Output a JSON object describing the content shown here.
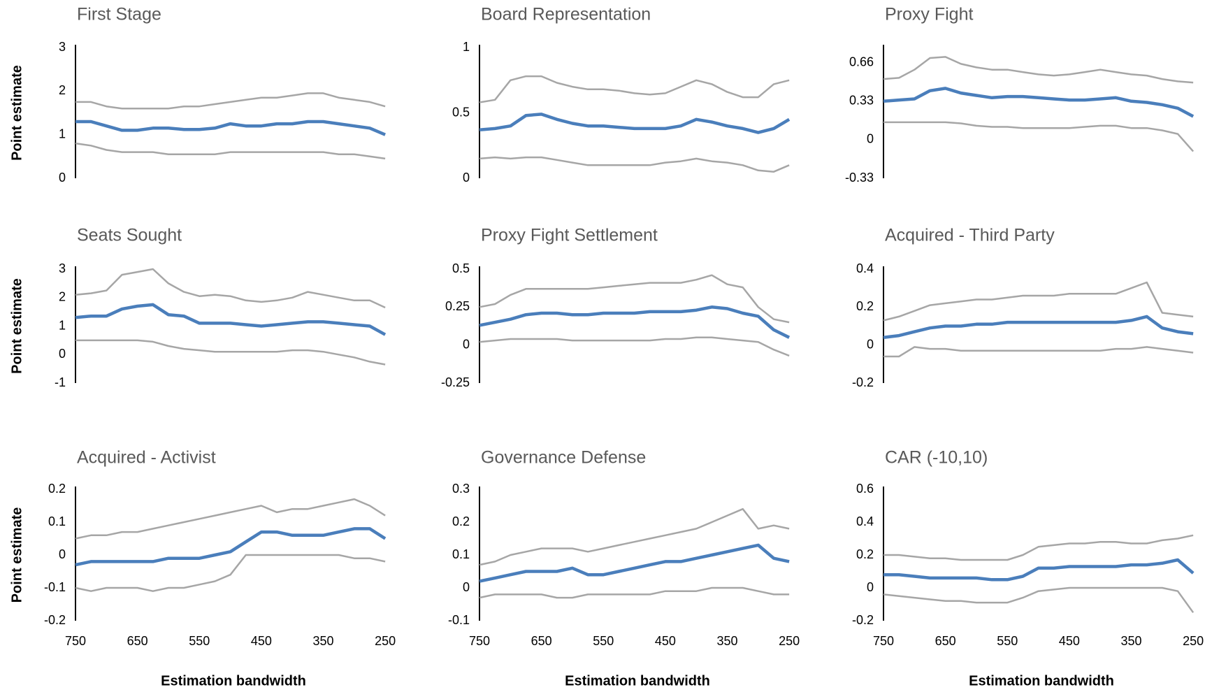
{
  "chart_data": [
    {
      "type": "line",
      "title": "First Stage",
      "y_label": "Point estimate",
      "x": [
        750,
        725,
        700,
        675,
        650,
        625,
        600,
        575,
        550,
        525,
        500,
        475,
        450,
        425,
        400,
        375,
        350,
        325,
        300,
        275,
        250
      ],
      "xlim": [
        750,
        240
      ],
      "ylim": [
        0,
        3
      ],
      "yticks": [
        0,
        1,
        2,
        3
      ],
      "series": [
        {
          "color": "#a6a6a6",
          "values": [
            1.75,
            1.75,
            1.65,
            1.6,
            1.6,
            1.6,
            1.6,
            1.65,
            1.65,
            1.7,
            1.75,
            1.8,
            1.85,
            1.85,
            1.9,
            1.95,
            1.95,
            1.85,
            1.8,
            1.75,
            1.65
          ]
        },
        {
          "color": "#a6a6a6",
          "values": [
            0.8,
            0.75,
            0.65,
            0.6,
            0.6,
            0.6,
            0.55,
            0.55,
            0.55,
            0.55,
            0.6,
            0.6,
            0.6,
            0.6,
            0.6,
            0.6,
            0.6,
            0.55,
            0.55,
            0.5,
            0.45
          ]
        },
        {
          "color": "#4a7ebb",
          "values": [
            1.3,
            1.3,
            1.2,
            1.1,
            1.1,
            1.15,
            1.15,
            1.12,
            1.12,
            1.15,
            1.25,
            1.2,
            1.2,
            1.25,
            1.25,
            1.3,
            1.3,
            1.25,
            1.2,
            1.15,
            1.0
          ]
        }
      ]
    },
    {
      "type": "line",
      "title": "Board Representation",
      "x": [
        750,
        725,
        700,
        675,
        650,
        625,
        600,
        575,
        550,
        525,
        500,
        475,
        450,
        425,
        400,
        375,
        350,
        325,
        300,
        275,
        250
      ],
      "xlim": [
        750,
        240
      ],
      "ylim": [
        0,
        1
      ],
      "yticks": [
        0,
        0.5,
        1
      ],
      "series": [
        {
          "color": "#a6a6a6",
          "values": [
            0.58,
            0.6,
            0.75,
            0.78,
            0.78,
            0.73,
            0.7,
            0.68,
            0.68,
            0.67,
            0.65,
            0.64,
            0.65,
            0.7,
            0.75,
            0.72,
            0.66,
            0.62,
            0.62,
            0.72,
            0.75
          ]
        },
        {
          "color": "#a6a6a6",
          "values": [
            0.15,
            0.16,
            0.15,
            0.16,
            0.16,
            0.14,
            0.12,
            0.1,
            0.1,
            0.1,
            0.1,
            0.1,
            0.12,
            0.13,
            0.15,
            0.13,
            0.12,
            0.1,
            0.06,
            0.05,
            0.1
          ]
        },
        {
          "color": "#4a7ebb",
          "values": [
            0.37,
            0.38,
            0.4,
            0.48,
            0.49,
            0.45,
            0.42,
            0.4,
            0.4,
            0.39,
            0.38,
            0.38,
            0.38,
            0.4,
            0.45,
            0.43,
            0.4,
            0.38,
            0.35,
            0.38,
            0.45
          ]
        }
      ]
    },
    {
      "type": "line",
      "title": "Proxy Fight",
      "x": [
        750,
        725,
        700,
        675,
        650,
        625,
        600,
        575,
        550,
        525,
        500,
        475,
        450,
        425,
        400,
        375,
        350,
        325,
        300,
        275,
        250
      ],
      "xlim": [
        750,
        240
      ],
      "ylim": [
        -0.33,
        0.79
      ],
      "yticks": [
        -0.33,
        0,
        0.33,
        0.66
      ],
      "series": [
        {
          "color": "#a6a6a6",
          "values": [
            0.52,
            0.53,
            0.6,
            0.7,
            0.71,
            0.65,
            0.62,
            0.6,
            0.6,
            0.58,
            0.56,
            0.55,
            0.56,
            0.58,
            0.6,
            0.58,
            0.56,
            0.55,
            0.52,
            0.5,
            0.49
          ]
        },
        {
          "color": "#a6a6a6",
          "values": [
            0.15,
            0.15,
            0.15,
            0.15,
            0.15,
            0.14,
            0.12,
            0.11,
            0.11,
            0.1,
            0.1,
            0.1,
            0.1,
            0.11,
            0.12,
            0.12,
            0.1,
            0.1,
            0.08,
            0.05,
            -0.1
          ]
        },
        {
          "color": "#4a7ebb",
          "values": [
            0.33,
            0.34,
            0.35,
            0.42,
            0.44,
            0.4,
            0.38,
            0.36,
            0.37,
            0.37,
            0.36,
            0.35,
            0.34,
            0.34,
            0.35,
            0.36,
            0.33,
            0.32,
            0.3,
            0.27,
            0.2
          ]
        }
      ]
    },
    {
      "type": "line",
      "title": "Seats Sought",
      "y_label": "Point estimate",
      "x": [
        750,
        725,
        700,
        675,
        650,
        625,
        600,
        575,
        550,
        525,
        500,
        475,
        450,
        425,
        400,
        375,
        350,
        325,
        300,
        275,
        250
      ],
      "xlim": [
        750,
        240
      ],
      "ylim": [
        -1,
        3
      ],
      "yticks": [
        -1,
        0,
        1,
        2,
        3
      ],
      "series": [
        {
          "color": "#a6a6a6",
          "values": [
            2.1,
            2.15,
            2.25,
            2.8,
            2.9,
            3.0,
            2.5,
            2.2,
            2.05,
            2.1,
            2.05,
            1.9,
            1.85,
            1.9,
            2.0,
            2.2,
            2.1,
            2.0,
            1.9,
            1.9,
            1.65
          ]
        },
        {
          "color": "#a6a6a6",
          "values": [
            0.5,
            0.5,
            0.5,
            0.5,
            0.5,
            0.45,
            0.3,
            0.2,
            0.15,
            0.1,
            0.1,
            0.1,
            0.1,
            0.1,
            0.15,
            0.15,
            0.1,
            0.0,
            -0.1,
            -0.25,
            -0.35
          ]
        },
        {
          "color": "#4a7ebb",
          "values": [
            1.3,
            1.35,
            1.35,
            1.6,
            1.7,
            1.75,
            1.4,
            1.35,
            1.1,
            1.1,
            1.1,
            1.05,
            1.0,
            1.05,
            1.1,
            1.15,
            1.15,
            1.1,
            1.05,
            1.0,
            0.7
          ]
        }
      ]
    },
    {
      "type": "line",
      "title": "Proxy Fight Settlement",
      "x": [
        750,
        725,
        700,
        675,
        650,
        625,
        600,
        575,
        550,
        525,
        500,
        475,
        450,
        425,
        400,
        375,
        350,
        325,
        300,
        275,
        250
      ],
      "xlim": [
        750,
        240
      ],
      "ylim": [
        -0.25,
        0.5
      ],
      "yticks": [
        -0.25,
        0,
        0.25,
        0.5
      ],
      "series": [
        {
          "color": "#a6a6a6",
          "values": [
            0.25,
            0.27,
            0.33,
            0.37,
            0.37,
            0.37,
            0.37,
            0.37,
            0.38,
            0.39,
            0.4,
            0.41,
            0.41,
            0.41,
            0.43,
            0.46,
            0.4,
            0.38,
            0.25,
            0.17,
            0.15
          ]
        },
        {
          "color": "#a6a6a6",
          "values": [
            0.02,
            0.03,
            0.04,
            0.04,
            0.04,
            0.04,
            0.03,
            0.03,
            0.03,
            0.03,
            0.03,
            0.03,
            0.04,
            0.04,
            0.05,
            0.05,
            0.04,
            0.03,
            0.02,
            -0.03,
            -0.07
          ]
        },
        {
          "color": "#4a7ebb",
          "values": [
            0.13,
            0.15,
            0.17,
            0.2,
            0.21,
            0.21,
            0.2,
            0.2,
            0.21,
            0.21,
            0.21,
            0.22,
            0.22,
            0.22,
            0.23,
            0.25,
            0.24,
            0.21,
            0.19,
            0.1,
            0.05
          ]
        }
      ]
    },
    {
      "type": "line",
      "title": "Acquired - Third Party",
      "x": [
        750,
        725,
        700,
        675,
        650,
        625,
        600,
        575,
        550,
        525,
        500,
        475,
        450,
        425,
        400,
        375,
        350,
        325,
        300,
        275,
        250
      ],
      "xlim": [
        750,
        240
      ],
      "ylim": [
        -0.2,
        0.4
      ],
      "yticks": [
        -0.2,
        0,
        0.2,
        0.4
      ],
      "series": [
        {
          "color": "#a6a6a6",
          "values": [
            0.13,
            0.15,
            0.18,
            0.21,
            0.22,
            0.23,
            0.24,
            0.24,
            0.25,
            0.26,
            0.26,
            0.26,
            0.27,
            0.27,
            0.27,
            0.27,
            0.3,
            0.33,
            0.17,
            0.16,
            0.15
          ]
        },
        {
          "color": "#a6a6a6",
          "values": [
            -0.06,
            -0.06,
            -0.01,
            -0.02,
            -0.02,
            -0.03,
            -0.03,
            -0.03,
            -0.03,
            -0.03,
            -0.03,
            -0.03,
            -0.03,
            -0.03,
            -0.03,
            -0.02,
            -0.02,
            -0.01,
            -0.02,
            -0.03,
            -0.04
          ]
        },
        {
          "color": "#4a7ebb",
          "values": [
            0.04,
            0.05,
            0.07,
            0.09,
            0.1,
            0.1,
            0.11,
            0.11,
            0.12,
            0.12,
            0.12,
            0.12,
            0.12,
            0.12,
            0.12,
            0.12,
            0.13,
            0.15,
            0.09,
            0.07,
            0.06
          ]
        }
      ]
    },
    {
      "type": "line",
      "title": "Acquired - Activist",
      "y_label": "Point estimate",
      "x_label": "Estimation bandwidth",
      "x": [
        750,
        725,
        700,
        675,
        650,
        625,
        600,
        575,
        550,
        525,
        500,
        475,
        450,
        425,
        400,
        375,
        350,
        325,
        300,
        275,
        250
      ],
      "xlim": [
        750,
        240
      ],
      "xticks": [
        750,
        650,
        550,
        450,
        350,
        250
      ],
      "ylim": [
        -0.2,
        0.2
      ],
      "yticks": [
        -0.2,
        -0.1,
        0,
        0.1,
        0.2
      ],
      "series": [
        {
          "color": "#a6a6a6",
          "values": [
            0.05,
            0.06,
            0.06,
            0.07,
            0.07,
            0.08,
            0.09,
            0.1,
            0.11,
            0.12,
            0.13,
            0.14,
            0.15,
            0.13,
            0.14,
            0.14,
            0.15,
            0.16,
            0.17,
            0.15,
            0.12
          ]
        },
        {
          "color": "#a6a6a6",
          "values": [
            -0.1,
            -0.11,
            -0.1,
            -0.1,
            -0.1,
            -0.11,
            -0.1,
            -0.1,
            -0.09,
            -0.08,
            -0.06,
            0,
            0,
            0,
            0,
            0,
            0,
            0,
            -0.01,
            -0.01,
            -0.02
          ]
        },
        {
          "color": "#4a7ebb",
          "values": [
            -0.03,
            -0.02,
            -0.02,
            -0.02,
            -0.02,
            -0.02,
            -0.01,
            -0.01,
            -0.01,
            0,
            0.01,
            0.04,
            0.07,
            0.07,
            0.06,
            0.06,
            0.06,
            0.07,
            0.08,
            0.08,
            0.05
          ]
        }
      ]
    },
    {
      "type": "line",
      "title": "Governance Defense",
      "x_label": "Estimation bandwidth",
      "x": [
        750,
        725,
        700,
        675,
        650,
        625,
        600,
        575,
        550,
        525,
        500,
        475,
        450,
        425,
        400,
        375,
        350,
        325,
        300,
        275,
        250
      ],
      "xlim": [
        750,
        240
      ],
      "xticks": [
        750,
        650,
        550,
        450,
        350,
        250
      ],
      "ylim": [
        -0.1,
        0.3
      ],
      "yticks": [
        -0.1,
        0,
        0.1,
        0.2,
        0.3
      ],
      "series": [
        {
          "color": "#a6a6a6",
          "values": [
            0.07,
            0.08,
            0.1,
            0.11,
            0.12,
            0.12,
            0.12,
            0.11,
            0.12,
            0.13,
            0.14,
            0.15,
            0.16,
            0.17,
            0.18,
            0.2,
            0.22,
            0.24,
            0.18,
            0.19,
            0.18
          ]
        },
        {
          "color": "#a6a6a6",
          "values": [
            -0.03,
            -0.02,
            -0.02,
            -0.02,
            -0.02,
            -0.03,
            -0.03,
            -0.02,
            -0.02,
            -0.02,
            -0.02,
            -0.02,
            -0.01,
            -0.01,
            -0.01,
            0,
            0,
            0,
            -0.01,
            -0.02,
            -0.02
          ]
        },
        {
          "color": "#4a7ebb",
          "values": [
            0.02,
            0.03,
            0.04,
            0.05,
            0.05,
            0.05,
            0.06,
            0.04,
            0.04,
            0.05,
            0.06,
            0.07,
            0.08,
            0.08,
            0.09,
            0.1,
            0.11,
            0.12,
            0.13,
            0.09,
            0.08
          ]
        }
      ]
    },
    {
      "type": "line",
      "title": "CAR (-10,10)",
      "x_label": "Estimation bandwidth",
      "x": [
        750,
        725,
        700,
        675,
        650,
        625,
        600,
        575,
        550,
        525,
        500,
        475,
        450,
        425,
        400,
        375,
        350,
        325,
        300,
        275,
        250
      ],
      "xlim": [
        750,
        240
      ],
      "xticks": [
        750,
        650,
        550,
        450,
        350,
        250
      ],
      "ylim": [
        -0.2,
        0.6
      ],
      "yticks": [
        -0.2,
        0,
        0.2,
        0.4,
        0.6
      ],
      "series": [
        {
          "color": "#a6a6a6",
          "values": [
            0.2,
            0.2,
            0.19,
            0.18,
            0.18,
            0.17,
            0.17,
            0.17,
            0.17,
            0.2,
            0.25,
            0.26,
            0.27,
            0.27,
            0.28,
            0.28,
            0.27,
            0.27,
            0.29,
            0.3,
            0.32
          ]
        },
        {
          "color": "#a6a6a6",
          "values": [
            -0.04,
            -0.05,
            -0.06,
            -0.07,
            -0.08,
            -0.08,
            -0.09,
            -0.09,
            -0.09,
            -0.06,
            -0.02,
            -0.01,
            0,
            0,
            0,
            0,
            0,
            0,
            0,
            -0.02,
            -0.15
          ]
        },
        {
          "color": "#4a7ebb",
          "values": [
            0.08,
            0.08,
            0.07,
            0.06,
            0.06,
            0.06,
            0.06,
            0.05,
            0.05,
            0.07,
            0.12,
            0.12,
            0.13,
            0.13,
            0.13,
            0.13,
            0.14,
            0.14,
            0.15,
            0.17,
            0.09
          ]
        }
      ]
    }
  ]
}
